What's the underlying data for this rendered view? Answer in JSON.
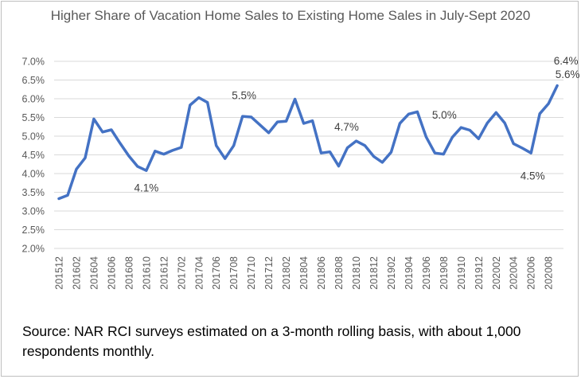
{
  "chart_data": {
    "type": "line",
    "title": "Higher Share of Vacation Home Sales to Existing Home Sales in July-Sept 2020",
    "xlabel": "",
    "ylabel": "",
    "ylim": [
      0.02,
      0.07
    ],
    "y_ticks": [
      "2.0%",
      "2.5%",
      "3.0%",
      "3.5%",
      "4.0%",
      "4.5%",
      "5.0%",
      "5.5%",
      "6.0%",
      "6.5%",
      "7.0%"
    ],
    "x_tick_labels": [
      "201512",
      "201602",
      "201604",
      "201606",
      "201608",
      "201610",
      "201612",
      "201702",
      "201704",
      "201706",
      "201708",
      "201710",
      "201712",
      "201802",
      "201804",
      "201806",
      "201808",
      "201810",
      "201812",
      "201902",
      "201904",
      "201906",
      "201908",
      "201910",
      "201912",
      "202002",
      "202004",
      "202006",
      "202008"
    ],
    "grid": "horizontal",
    "line_color": "#4472c4",
    "series": [
      {
        "x": [
          "201512",
          "201601",
          "201602",
          "201603",
          "201604",
          "201605",
          "201606",
          "201607",
          "201608",
          "201609",
          "201610",
          "201611",
          "201612",
          "201701",
          "201702",
          "201703",
          "201704",
          "201705",
          "201706",
          "201707",
          "201708",
          "201709",
          "201710",
          "201711",
          "201712",
          "201801",
          "201802",
          "201803",
          "201804",
          "201805",
          "201806",
          "201807",
          "201808",
          "201809",
          "201810",
          "201811",
          "201812",
          "201901",
          "201902",
          "201903",
          "201904",
          "201905",
          "201906",
          "201907",
          "201908",
          "201909",
          "201910",
          "201911",
          "201912",
          "202001",
          "202002",
          "202003",
          "202004",
          "202005",
          "202006",
          "202007",
          "202008",
          "202009"
        ],
        "values": [
          0.0333,
          0.0342,
          0.0412,
          0.0442,
          0.0546,
          0.0511,
          0.0517,
          0.0481,
          0.0447,
          0.0419,
          0.0408,
          0.046,
          0.0452,
          0.0462,
          0.047,
          0.0583,
          0.0603,
          0.059,
          0.0475,
          0.044,
          0.0475,
          0.0553,
          0.0551,
          0.053,
          0.0509,
          0.0538,
          0.054,
          0.0599,
          0.0534,
          0.0541,
          0.0455,
          0.0458,
          0.042,
          0.0469,
          0.0487,
          0.0475,
          0.0446,
          0.043,
          0.0457,
          0.0534,
          0.0559,
          0.0565,
          0.0498,
          0.0455,
          0.0452,
          0.0497,
          0.0523,
          0.0516,
          0.0493,
          0.0535,
          0.0563,
          0.0535,
          0.048,
          0.0468,
          0.0455,
          0.056,
          0.0587,
          0.0635
        ]
      }
    ],
    "annotations": [
      {
        "text": "4.1%",
        "x": "201610"
      },
      {
        "text": "5.5%",
        "x": "201709"
      },
      {
        "text": "4.7%",
        "x": "201810"
      },
      {
        "text": "5.0%",
        "x": "201909"
      },
      {
        "text": "4.5%",
        "x": "202006"
      },
      {
        "text": "5.6%",
        "x": "202009"
      },
      {
        "text": "6.4%",
        "x": "202009"
      }
    ]
  },
  "source_note": "Source: NAR RCI surveys estimated on a 3-month rolling basis, with about 1,000 respondents monthly."
}
